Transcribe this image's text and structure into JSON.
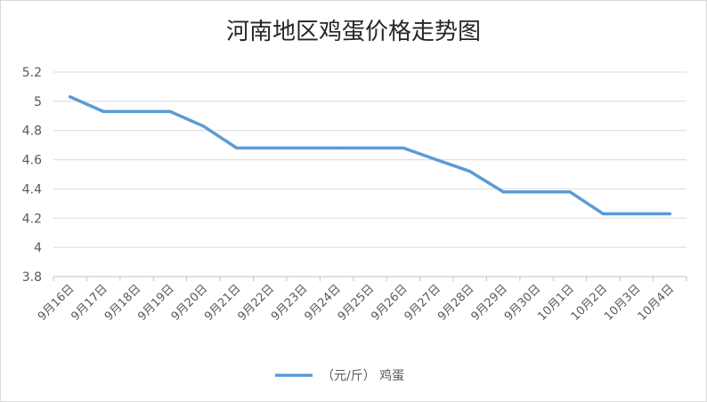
{
  "chart_data": {
    "type": "line",
    "title": "河南地区鸡蛋价格走势图",
    "xlabel": "",
    "ylabel": "",
    "categories": [
      "9月16日",
      "9月17日",
      "9月18日",
      "9月19日",
      "9月20日",
      "9月21日",
      "9月22日",
      "9月23日",
      "9月24日",
      "9月25日",
      "9月26日",
      "9月27日",
      "9月28日",
      "9月29日",
      "9月30日",
      "10月1日",
      "10月2日",
      "10月3日",
      "10月4日"
    ],
    "series": [
      {
        "name": "（元/斤） 鸡蛋",
        "values": [
          5.03,
          4.93,
          4.93,
          4.93,
          4.83,
          4.68,
          4.68,
          4.68,
          4.68,
          4.68,
          4.68,
          4.6,
          4.52,
          4.38,
          4.38,
          4.38,
          4.23,
          4.23,
          4.23
        ],
        "color": "#5b9bd5"
      }
    ],
    "ylim": [
      3.8,
      5.2
    ],
    "yticks": [
      "3.8",
      "4",
      "4.2",
      "4.4",
      "4.6",
      "4.8",
      "5",
      "5.2"
    ],
    "grid": true,
    "legend_position": "bottom"
  }
}
